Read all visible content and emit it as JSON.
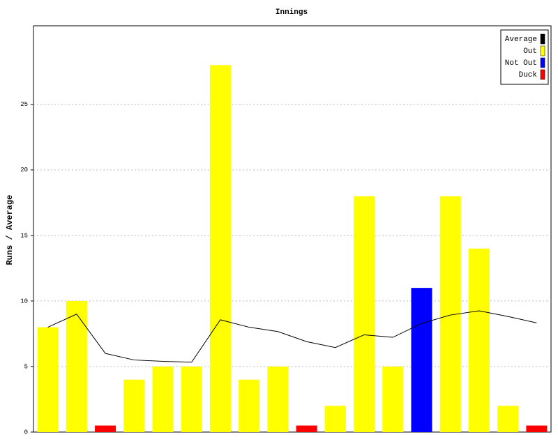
{
  "chart_data": {
    "type": "bar",
    "title": "Innings",
    "y_label": "Runs / Average",
    "categories": [
      null,
      null,
      null,
      null,
      null,
      null,
      null,
      null,
      null,
      null,
      null,
      null,
      null,
      null,
      null,
      null,
      null,
      null
    ],
    "series": [
      {
        "name": "Average",
        "color": "#000000",
        "type": "line",
        "values": [
          8,
          9,
          6,
          5.5,
          5.4,
          5.33,
          8.57,
          8,
          7.67,
          6.9,
          6.45,
          7.42,
          7.23,
          8.29,
          8.93,
          9.25,
          8.82,
          8.33
        ]
      },
      {
        "name": "Out",
        "color": "#ffff00",
        "values": [
          8,
          10,
          null,
          4,
          5,
          5,
          28,
          4,
          5,
          null,
          2,
          18,
          5,
          null,
          18,
          14,
          2,
          null
        ]
      },
      {
        "name": "Not Out",
        "color": "#0000ff",
        "values": [
          null,
          null,
          null,
          null,
          null,
          null,
          null,
          null,
          null,
          null,
          null,
          null,
          null,
          11,
          null,
          null,
          null,
          null
        ]
      },
      {
        "name": "Duck",
        "color": "#ff0000",
        "values": [
          null,
          null,
          0.5,
          null,
          null,
          null,
          null,
          null,
          null,
          0.5,
          null,
          null,
          null,
          null,
          null,
          null,
          null,
          0.5
        ]
      }
    ],
    "ylim": [
      0,
      31
    ],
    "yticks": [
      0,
      5,
      10,
      15,
      20,
      25
    ],
    "grid": true,
    "legend": "upper right"
  }
}
